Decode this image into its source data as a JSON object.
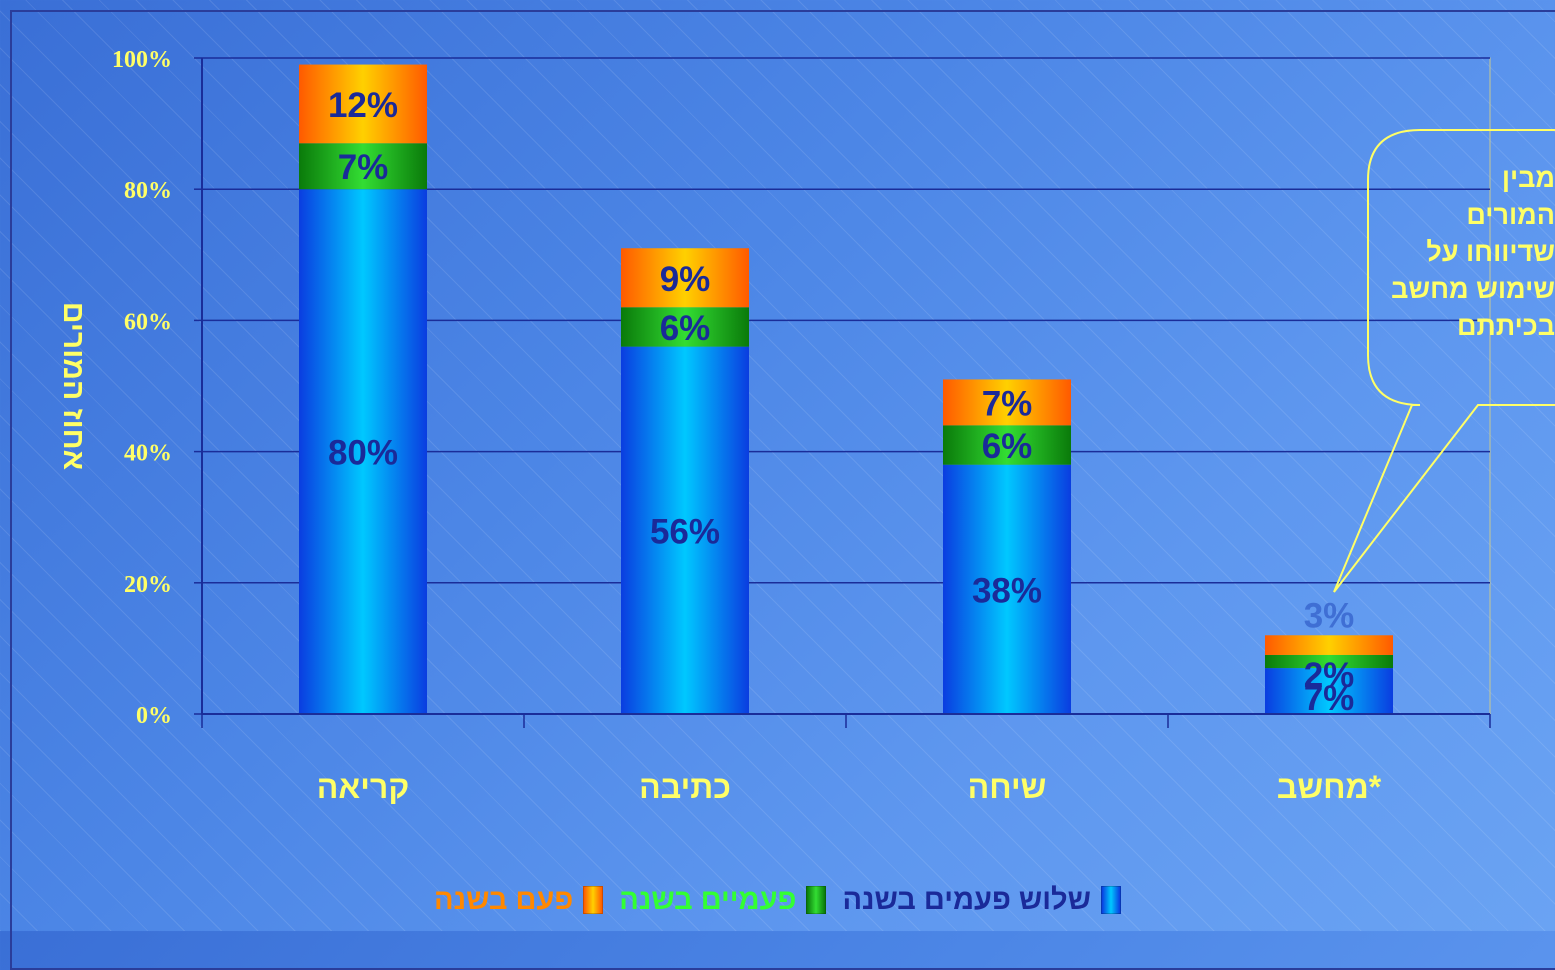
{
  "chart_data": {
    "type": "bar",
    "stacked": true,
    "categories": [
      "קריאה",
      "כתיבה",
      "שיחה",
      "מחשב*"
    ],
    "series": [
      {
        "name": "שלוש פעמים בשנה",
        "values": [
          80,
          56,
          38,
          7
        ],
        "labels": [
          "80%",
          "56%",
          "38%",
          "7%"
        ]
      },
      {
        "name": "פעמיים בשנה",
        "values": [
          7,
          6,
          6,
          2
        ],
        "labels": [
          "7%",
          "6%",
          "6%",
          "2%"
        ]
      },
      {
        "name": "פעם בשנה",
        "values": [
          12,
          9,
          7,
          3
        ],
        "labels": [
          "12%",
          "9%",
          "7%",
          "3%"
        ]
      }
    ],
    "ylabel": "אחוז המורים",
    "ylim": [
      0,
      100
    ],
    "yticks": [
      "0%",
      "20%",
      "40%",
      "60%",
      "80%",
      "100%"
    ],
    "grid": true,
    "legend_position": "bottom"
  },
  "callout": {
    "lines": [
      "מבין",
      "המורים",
      "שדיווחו על",
      "שימוש מחשב",
      "בכיתתם"
    ]
  },
  "colors": {
    "series_three_times": "#00b4ff",
    "series_twice": "#22cc22",
    "series_once": "#ff9900",
    "axis_text": "#ffff66",
    "legend_three_times": "#1a2a99",
    "legend_twice": "#33ff33",
    "legend_once": "#ff8800",
    "callout_text": "#ffff66"
  }
}
